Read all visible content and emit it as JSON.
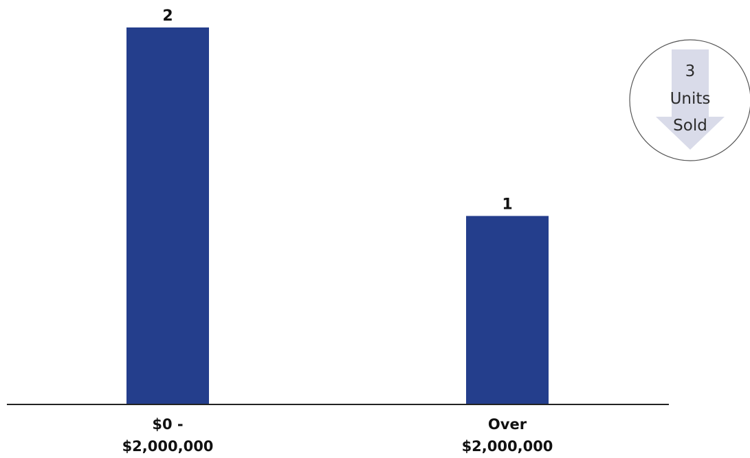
{
  "chart_data": {
    "type": "bar",
    "categories": [
      [
        "$0 -",
        "$2,000,000"
      ],
      [
        "Over",
        "$2,000,000"
      ]
    ],
    "values": [
      2,
      1
    ],
    "ylim": [
      0,
      2
    ],
    "grid": false,
    "bar_color": "#243e8c",
    "axis_color": "#222222"
  },
  "badge": {
    "lines": [
      "3",
      "Units",
      "Sold"
    ],
    "arrow_color": "#d9dbe9",
    "ring_color": "#555555",
    "icon": "down-arrow-icon"
  }
}
